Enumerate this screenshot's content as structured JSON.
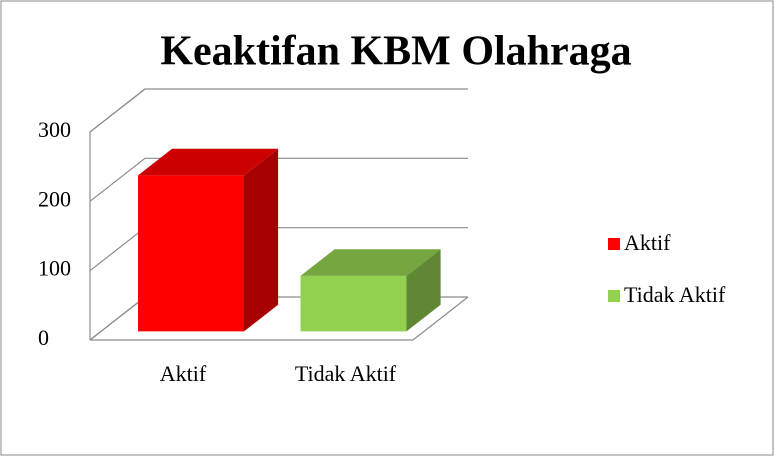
{
  "chart_data": {
    "type": "bar3d",
    "title": "Keaktifan KBM Olahraga",
    "categories": [
      "Aktif",
      "Tidak Aktif"
    ],
    "values": [
      225,
      80
    ],
    "colors": [
      "#ff0000",
      "#92d050"
    ],
    "ylim": [
      0,
      300
    ],
    "yticks": [
      0,
      100,
      200,
      300
    ],
    "grid": true,
    "legend": "right"
  }
}
